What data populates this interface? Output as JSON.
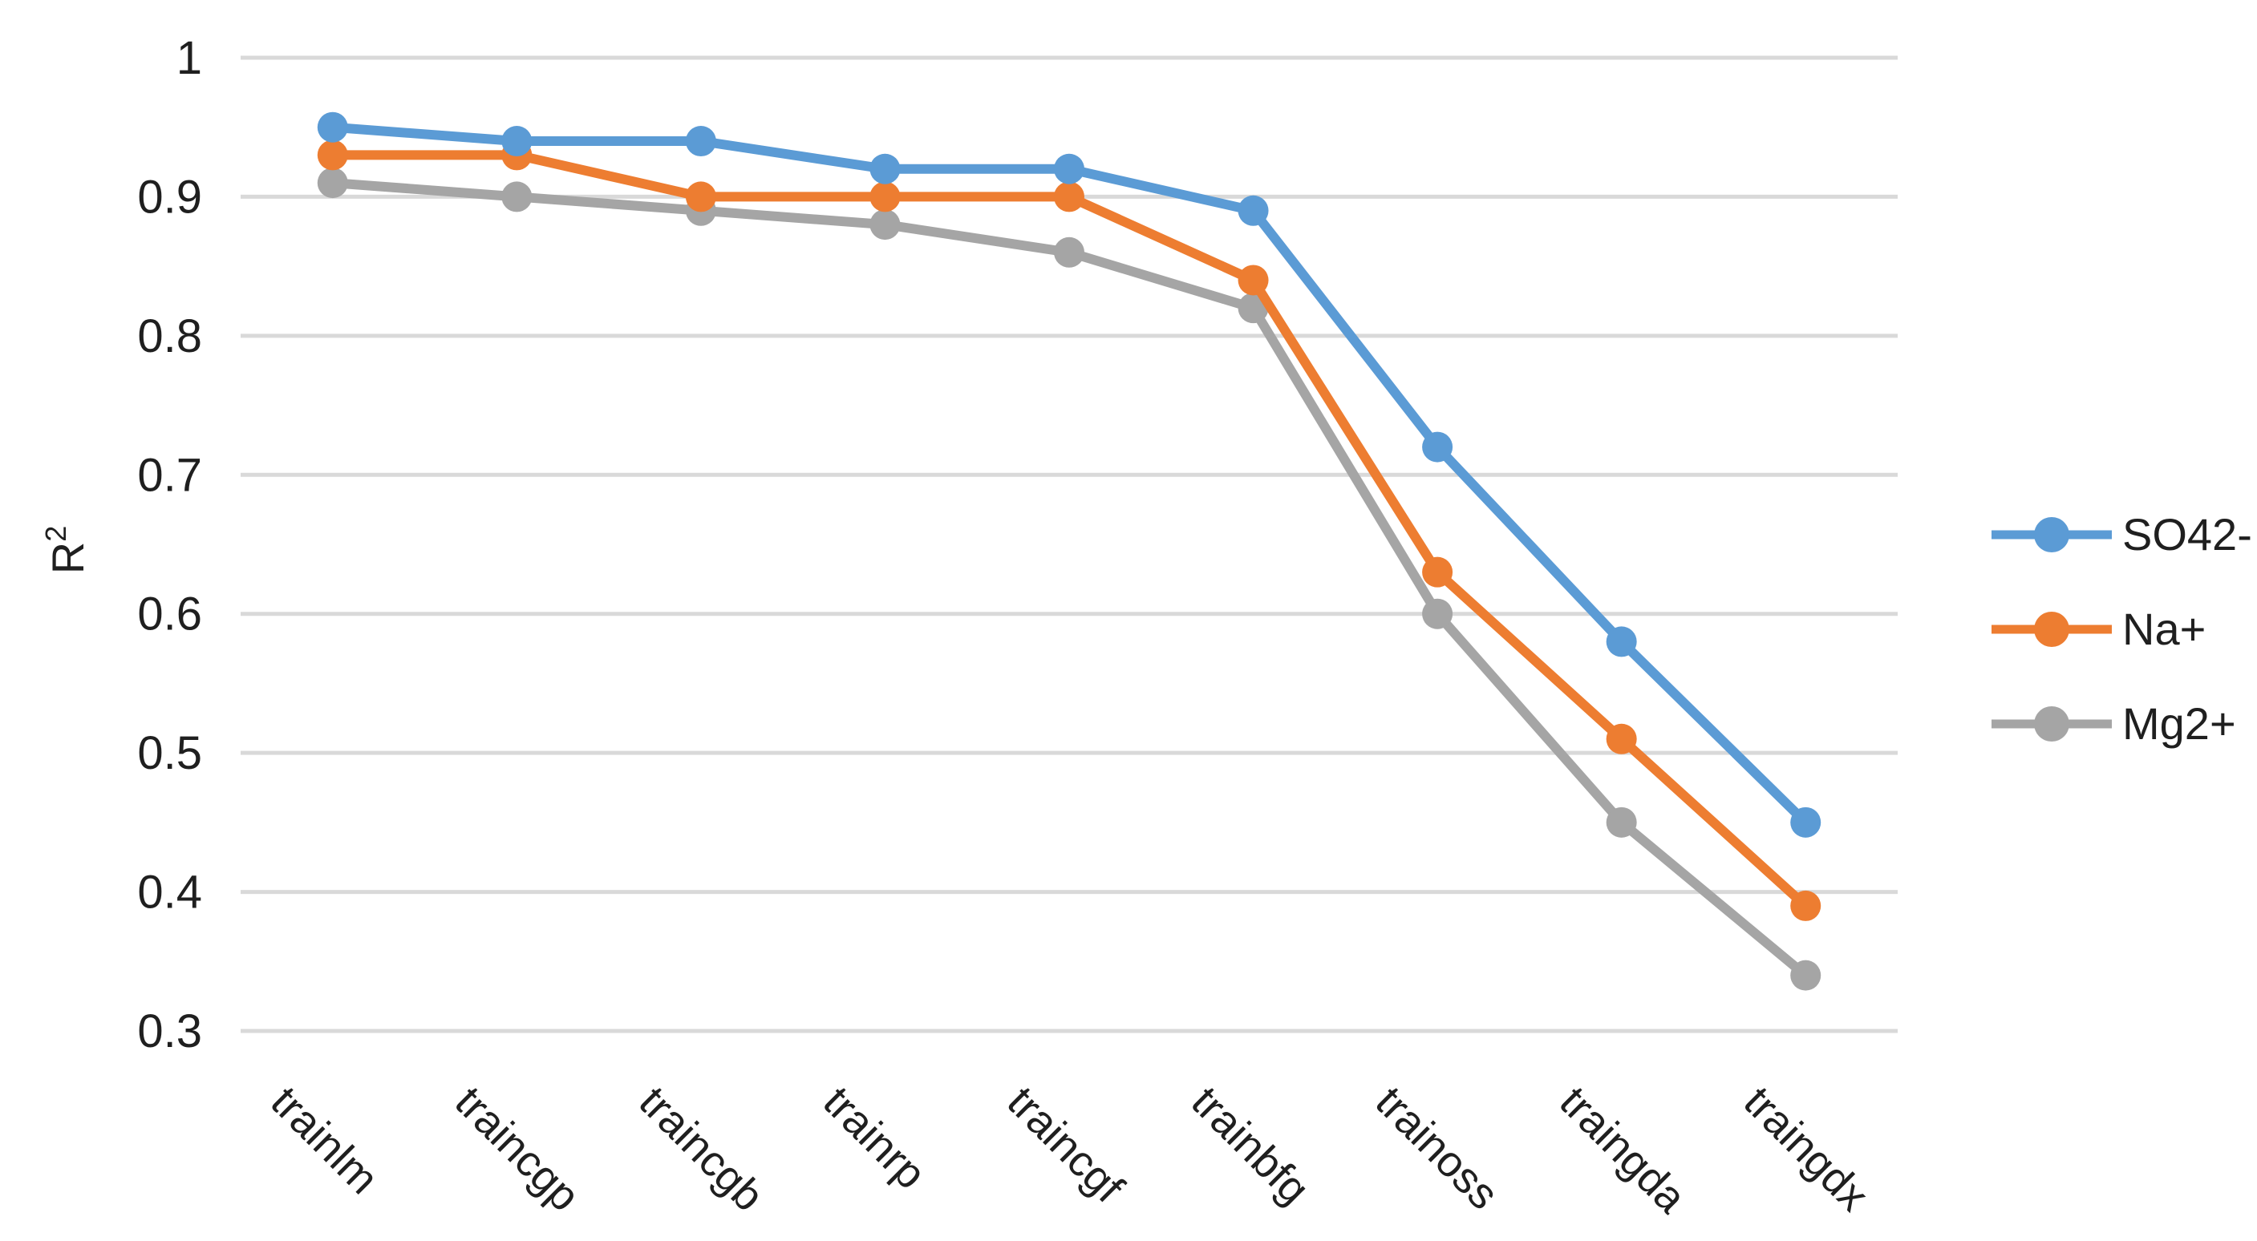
{
  "chart_data": {
    "type": "line",
    "title": "",
    "xlabel": "",
    "ylabel": "R",
    "ylabel_superscript": "2",
    "categories": [
      "trainlm",
      "traincgp",
      "traincgb",
      "trainrp",
      "traincgf",
      "trainbfg",
      "trainoss",
      "traingda",
      "traingdx"
    ],
    "series": [
      {
        "name": "SO42-",
        "color": "#5B9BD5",
        "values": [
          0.95,
          0.94,
          0.94,
          0.92,
          0.92,
          0.89,
          0.72,
          0.58,
          0.45
        ]
      },
      {
        "name": "Na+",
        "color": "#ED7D31",
        "values": [
          0.93,
          0.93,
          0.9,
          0.9,
          0.9,
          0.84,
          0.63,
          0.51,
          0.39
        ]
      },
      {
        "name": "Mg2+",
        "color": "#A5A5A5",
        "values": [
          0.91,
          0.9,
          0.89,
          0.88,
          0.86,
          0.82,
          0.6,
          0.45,
          0.34
        ]
      }
    ],
    "ylim": [
      0.3,
      1.0
    ],
    "ytick_step": 0.1,
    "ytick_labels": [
      "0.3",
      "0.4",
      "0.5",
      "0.6",
      "0.7",
      "0.8",
      "0.9",
      "1"
    ],
    "x_label_rotation_deg": 45,
    "grid": "horizontal",
    "legend_position": "right",
    "gridline_color": "#D9D9D9",
    "text_color": "#1f1f1f",
    "background_color": "#ffffff"
  }
}
